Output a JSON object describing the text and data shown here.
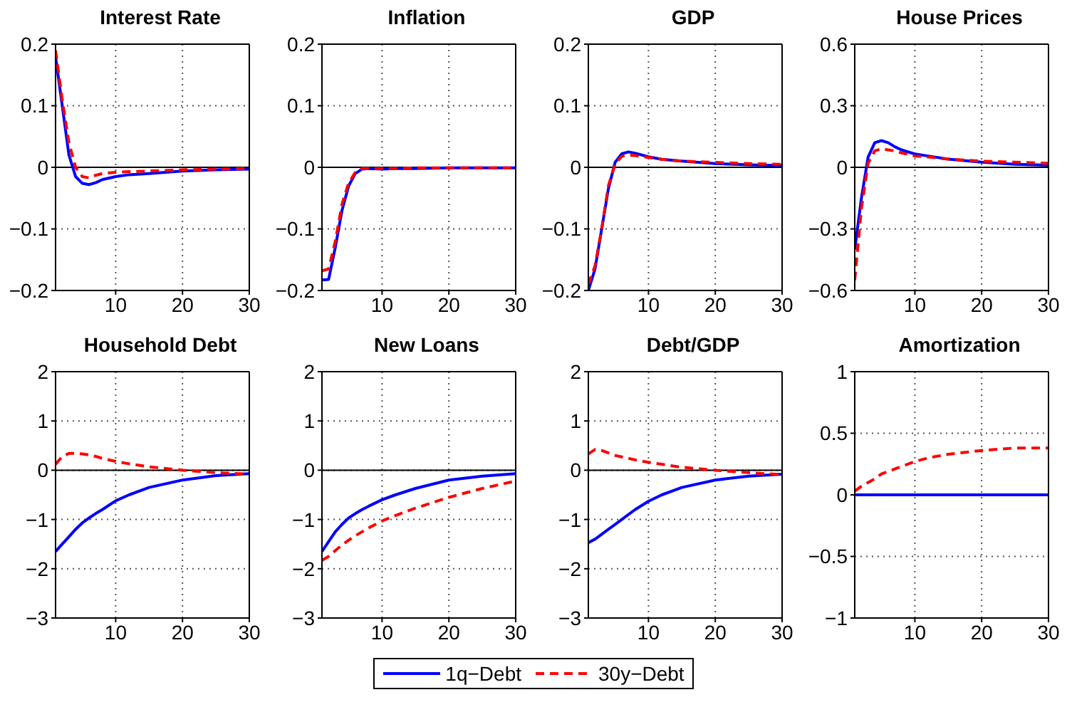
{
  "chart_data": [
    {
      "type": "line",
      "title": "Interest Rate",
      "x": [
        1,
        2,
        3,
        4,
        5,
        6,
        7,
        8,
        10,
        12,
        15,
        20,
        25,
        30
      ],
      "xlim": [
        1,
        30
      ],
      "xticks": [
        10,
        20,
        30
      ],
      "ylim": [
        -0.2,
        0.2
      ],
      "yticks": [
        -0.2,
        -0.1,
        0,
        0.1,
        0.2
      ],
      "grid": true,
      "marker": "none",
      "ref_lines": [
        {
          "axis": "y",
          "value": 0,
          "color": "#000000"
        }
      ],
      "series": [
        {
          "color": "#0000ff",
          "line_style": "solid",
          "values": [
            0.18,
            0.1,
            0.02,
            -0.015,
            -0.026,
            -0.028,
            -0.025,
            -0.02,
            -0.015,
            -0.012,
            -0.01,
            -0.006,
            -0.004,
            -0.003
          ]
        },
        {
          "color": "#ff0000",
          "line_style": "dashed",
          "values": [
            0.19,
            0.11,
            0.04,
            0.0,
            -0.015,
            -0.017,
            -0.013,
            -0.01,
            -0.008,
            -0.007,
            -0.006,
            -0.004,
            -0.003,
            -0.002
          ]
        }
      ]
    },
    {
      "type": "line",
      "title": "Inflation",
      "x": [
        1,
        2,
        3,
        4,
        5,
        6,
        7,
        8,
        10,
        12,
        15,
        20,
        25,
        30
      ],
      "xlim": [
        1,
        30
      ],
      "xticks": [
        10,
        20,
        30
      ],
      "ylim": [
        -0.2,
        0.2
      ],
      "yticks": [
        -0.2,
        -0.1,
        0,
        0.1,
        0.2
      ],
      "grid": true,
      "marker": "none",
      "ref_lines": [
        {
          "axis": "y",
          "value": 0,
          "color": "#000000"
        }
      ],
      "series": [
        {
          "color": "#0000ff",
          "line_style": "solid",
          "values": [
            -0.183,
            -0.182,
            -0.13,
            -0.07,
            -0.03,
            -0.01,
            -0.003,
            -0.002,
            -0.003,
            -0.002,
            -0.002,
            -0.001,
            -0.001,
            -0.001
          ]
        },
        {
          "color": "#ff0000",
          "line_style": "dashed",
          "values": [
            -0.168,
            -0.165,
            -0.12,
            -0.06,
            -0.025,
            -0.008,
            -0.002,
            -0.002,
            -0.002,
            -0.002,
            -0.001,
            -0.001,
            -0.001,
            -0.001
          ]
        }
      ]
    },
    {
      "type": "line",
      "title": "GDP",
      "x": [
        1,
        2,
        3,
        4,
        5,
        6,
        7,
        8,
        10,
        12,
        15,
        20,
        25,
        30
      ],
      "xlim": [
        1,
        30
      ],
      "xticks": [
        10,
        20,
        30
      ],
      "ylim": [
        -0.2,
        0.2
      ],
      "yticks": [
        -0.2,
        -0.1,
        0,
        0.1,
        0.2
      ],
      "grid": true,
      "marker": "none",
      "ref_lines": [
        {
          "axis": "y",
          "value": 0,
          "color": "#000000"
        }
      ],
      "series": [
        {
          "color": "#0000ff",
          "line_style": "solid",
          "values": [
            -0.2,
            -0.165,
            -0.1,
            -0.035,
            0.008,
            0.022,
            0.025,
            0.023,
            0.017,
            0.013,
            0.01,
            0.006,
            0.004,
            0.003
          ]
        },
        {
          "color": "#ff0000",
          "line_style": "dashed",
          "values": [
            -0.19,
            -0.16,
            -0.1,
            -0.03,
            0.005,
            0.018,
            0.02,
            0.019,
            0.016,
            0.013,
            0.01,
            0.008,
            0.006,
            0.005
          ]
        }
      ]
    },
    {
      "type": "line",
      "title": "House Prices",
      "x": [
        1,
        2,
        3,
        4,
        5,
        6,
        7,
        8,
        10,
        12,
        15,
        20,
        25,
        30
      ],
      "xlim": [
        1,
        30
      ],
      "xticks": [
        10,
        20,
        30
      ],
      "ylim": [
        -0.6,
        0.6
      ],
      "yticks": [
        -0.6,
        -0.3,
        0,
        0.3,
        0.6
      ],
      "grid": true,
      "marker": "none",
      "ref_lines": [
        {
          "axis": "y",
          "value": 0,
          "color": "#000000"
        }
      ],
      "series": [
        {
          "color": "#0000ff",
          "line_style": "solid",
          "values": [
            -0.4,
            -0.15,
            0.05,
            0.12,
            0.13,
            0.12,
            0.1,
            0.085,
            0.065,
            0.055,
            0.04,
            0.025,
            0.015,
            0.01
          ]
        },
        {
          "color": "#ff0000",
          "line_style": "dashed",
          "values": [
            -0.55,
            -0.2,
            0.02,
            0.08,
            0.09,
            0.085,
            0.08,
            0.07,
            0.055,
            0.05,
            0.04,
            0.03,
            0.025,
            0.02
          ]
        }
      ]
    },
    {
      "type": "line",
      "title": "Household Debt",
      "x": [
        1,
        2,
        3,
        4,
        5,
        6,
        7,
        8,
        10,
        12,
        15,
        20,
        25,
        30
      ],
      "xlim": [
        1,
        30
      ],
      "xticks": [
        10,
        20,
        30
      ],
      "ylim": [
        -3,
        2
      ],
      "yticks": [
        -3,
        -2,
        -1,
        0,
        1,
        2
      ],
      "grid": true,
      "marker": "none",
      "ref_lines": [
        {
          "axis": "y",
          "value": 0,
          "color": "#000000"
        }
      ],
      "series": [
        {
          "color": "#0000ff",
          "line_style": "solid",
          "values": [
            -1.65,
            -1.5,
            -1.35,
            -1.2,
            -1.07,
            -0.97,
            -0.88,
            -0.8,
            -0.62,
            -0.5,
            -0.35,
            -0.2,
            -0.11,
            -0.07
          ]
        },
        {
          "color": "#ff0000",
          "line_style": "dashed",
          "values": [
            0.12,
            0.28,
            0.34,
            0.34,
            0.33,
            0.31,
            0.28,
            0.24,
            0.18,
            0.13,
            0.07,
            0.0,
            -0.05,
            -0.08
          ]
        }
      ]
    },
    {
      "type": "line",
      "title": "New Loans",
      "x": [
        1,
        2,
        3,
        4,
        5,
        6,
        7,
        8,
        10,
        12,
        15,
        20,
        25,
        30
      ],
      "xlim": [
        1,
        30
      ],
      "xticks": [
        10,
        20,
        30
      ],
      "ylim": [
        -3,
        2
      ],
      "yticks": [
        -3,
        -2,
        -1,
        0,
        1,
        2
      ],
      "grid": true,
      "marker": "none",
      "legend": "bottom",
      "ref_lines": [
        {
          "axis": "y",
          "value": 0,
          "color": "#000000"
        }
      ],
      "series": [
        {
          "name": "1q−Debt",
          "color": "#0000ff",
          "line_style": "solid",
          "values": [
            -1.65,
            -1.45,
            -1.25,
            -1.1,
            -0.97,
            -0.88,
            -0.8,
            -0.73,
            -0.6,
            -0.5,
            -0.37,
            -0.2,
            -0.12,
            -0.07
          ]
        },
        {
          "name": "30y−Debt",
          "color": "#ff0000",
          "line_style": "dashed",
          "values": [
            -1.83,
            -1.75,
            -1.63,
            -1.52,
            -1.42,
            -1.33,
            -1.25,
            -1.17,
            -1.03,
            -0.92,
            -0.77,
            -0.55,
            -0.37,
            -0.22
          ]
        }
      ]
    },
    {
      "type": "line",
      "title": "Debt/GDP",
      "x": [
        1,
        2,
        3,
        4,
        5,
        6,
        7,
        8,
        10,
        12,
        15,
        20,
        25,
        30
      ],
      "xlim": [
        1,
        30
      ],
      "xticks": [
        10,
        20,
        30
      ],
      "ylim": [
        -3,
        2
      ],
      "yticks": [
        -3,
        -2,
        -1,
        0,
        1,
        2
      ],
      "grid": true,
      "marker": "none",
      "ref_lines": [
        {
          "axis": "y",
          "value": 0,
          "color": "#000000"
        }
      ],
      "series": [
        {
          "color": "#0000ff",
          "line_style": "solid",
          "values": [
            -1.47,
            -1.4,
            -1.3,
            -1.2,
            -1.1,
            -1.0,
            -0.9,
            -0.8,
            -0.63,
            -0.5,
            -0.35,
            -0.2,
            -0.12,
            -0.08
          ]
        },
        {
          "color": "#ff0000",
          "line_style": "dashed",
          "values": [
            0.33,
            0.42,
            0.4,
            0.35,
            0.3,
            0.27,
            0.24,
            0.21,
            0.16,
            0.12,
            0.06,
            0.0,
            -0.05,
            -0.09
          ]
        }
      ]
    },
    {
      "type": "line",
      "title": "Amortization",
      "x": [
        1,
        2,
        3,
        4,
        5,
        6,
        7,
        8,
        10,
        12,
        15,
        20,
        25,
        30
      ],
      "xlim": [
        1,
        30
      ],
      "xticks": [
        10,
        20,
        30
      ],
      "ylim": [
        -1,
        1
      ],
      "yticks": [
        -1,
        -0.5,
        0,
        0.5,
        1
      ],
      "grid": true,
      "marker": "none",
      "series": [
        {
          "color": "#0000ff",
          "line_style": "solid",
          "values": [
            0,
            0,
            0,
            0,
            0,
            0,
            0,
            0,
            0,
            0,
            0,
            0,
            0,
            0
          ]
        },
        {
          "color": "#ff0000",
          "line_style": "dashed",
          "values": [
            0.03,
            0.07,
            0.1,
            0.13,
            0.17,
            0.19,
            0.21,
            0.23,
            0.27,
            0.3,
            0.33,
            0.36,
            0.38,
            0.38
          ]
        }
      ]
    }
  ]
}
